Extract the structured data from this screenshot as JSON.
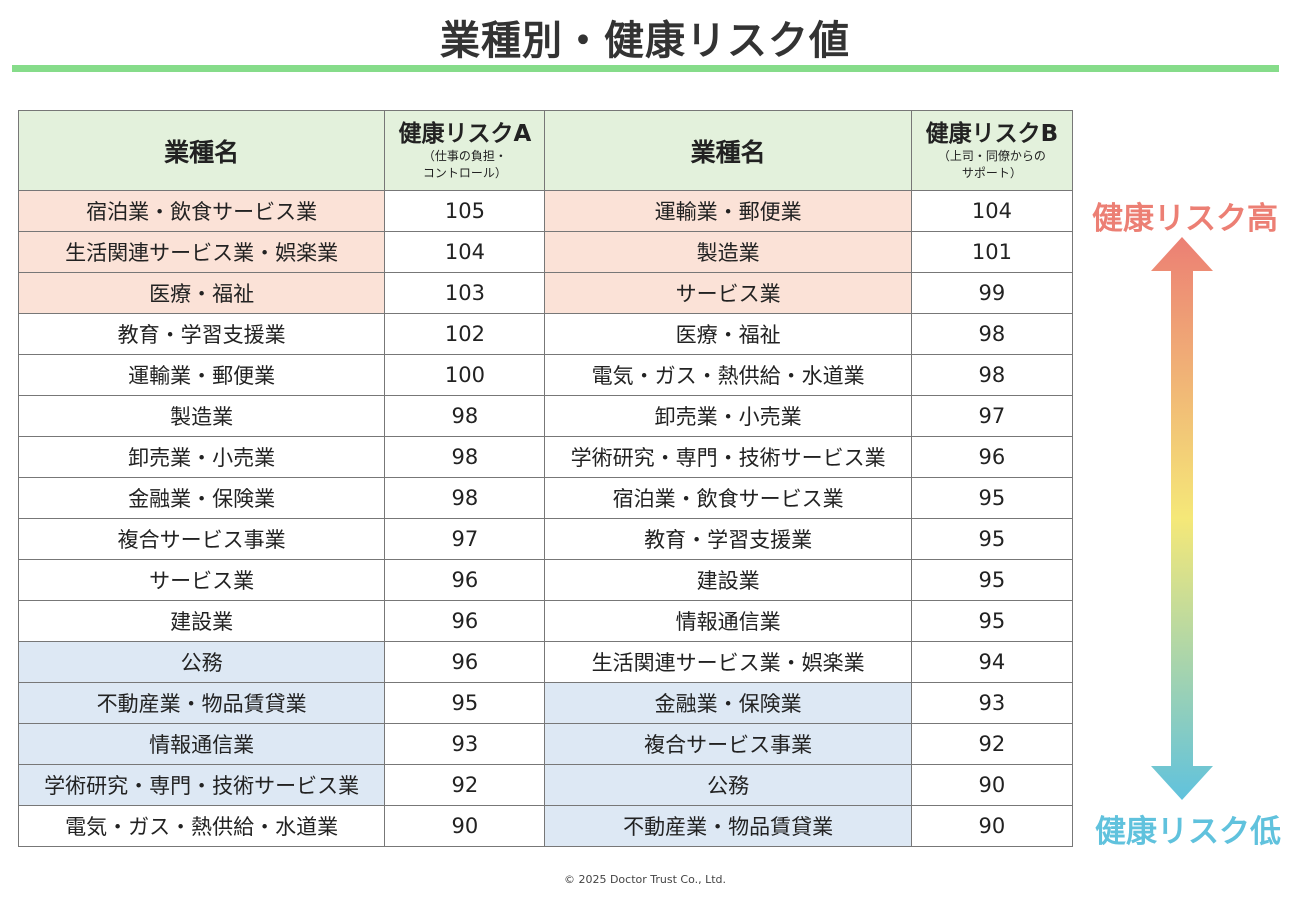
{
  "title": "業種別・健康リスク値",
  "table": {
    "header": {
      "name_a": "業種名",
      "risk_a_main": "健康リスクA",
      "risk_a_sub1": "（仕事の負担・",
      "risk_a_sub2": "コントロール）",
      "name_b": "業種名",
      "risk_b_main": "健康リスクB",
      "risk_b_sub1": "（上司・同僚からの",
      "risk_b_sub2": "サポート）"
    },
    "rows": [
      {
        "a_name": "宿泊業・飲食サービス業",
        "a_val": "105",
        "a_level": "high",
        "b_name": "運輸業・郵便業",
        "b_val": "104",
        "b_level": "high"
      },
      {
        "a_name": "生活関連サービス業・娯楽業",
        "a_val": "104",
        "a_level": "high",
        "b_name": "製造業",
        "b_val": "101",
        "b_level": "high"
      },
      {
        "a_name": "医療・福祉",
        "a_val": "103",
        "a_level": "high",
        "b_name": "サービス業",
        "b_val": "99",
        "b_level": "high"
      },
      {
        "a_name": "教育・学習支援業",
        "a_val": "102",
        "a_level": "",
        "b_name": "医療・福祉",
        "b_val": "98",
        "b_level": ""
      },
      {
        "a_name": "運輸業・郵便業",
        "a_val": "100",
        "a_level": "",
        "b_name": "電気・ガス・熱供給・水道業",
        "b_val": "98",
        "b_level": ""
      },
      {
        "a_name": "製造業",
        "a_val": "98",
        "a_level": "",
        "b_name": "卸売業・小売業",
        "b_val": "97",
        "b_level": ""
      },
      {
        "a_name": "卸売業・小売業",
        "a_val": "98",
        "a_level": "",
        "b_name": "学術研究・専門・技術サービス業",
        "b_val": "96",
        "b_level": ""
      },
      {
        "a_name": "金融業・保険業",
        "a_val": "98",
        "a_level": "",
        "b_name": "宿泊業・飲食サービス業",
        "b_val": "95",
        "b_level": ""
      },
      {
        "a_name": "複合サービス事業",
        "a_val": "97",
        "a_level": "",
        "b_name": "教育・学習支援業",
        "b_val": "95",
        "b_level": ""
      },
      {
        "a_name": "サービス業",
        "a_val": "96",
        "a_level": "",
        "b_name": "建設業",
        "b_val": "95",
        "b_level": ""
      },
      {
        "a_name": "建設業",
        "a_val": "96",
        "a_level": "",
        "b_name": "情報通信業",
        "b_val": "95",
        "b_level": ""
      },
      {
        "a_name": "公務",
        "a_val": "96",
        "a_level": "low",
        "b_name": "生活関連サービス業・娯楽業",
        "b_val": "94",
        "b_level": ""
      },
      {
        "a_name": "不動産業・物品賃貸業",
        "a_val": "95",
        "a_level": "low",
        "b_name": "金融業・保険業",
        "b_val": "93",
        "b_level": "low"
      },
      {
        "a_name": "情報通信業",
        "a_val": "93",
        "a_level": "low",
        "b_name": "複合サービス事業",
        "b_val": "92",
        "b_level": "low"
      },
      {
        "a_name": "学術研究・専門・技術サービス業",
        "a_val": "92",
        "a_level": "low",
        "b_name": "公務",
        "b_val": "90",
        "b_level": "low"
      },
      {
        "a_name": "電気・ガス・熱供給・水道業",
        "a_val": "90",
        "a_level": "",
        "b_name": "不動産業・物品賃貸業",
        "b_val": "90",
        "b_level": "low"
      }
    ]
  },
  "legend": {
    "high_label": "健康リスク高",
    "low_label": "健康リスク低",
    "high_color": "#ec7f74",
    "mid_color": "#f5e878",
    "low_color": "#60c2dd",
    "arrow_icon": "double-headed-gradient-arrow"
  },
  "colors": {
    "header_bg": "#e3f1dc",
    "high_bg": "#fbe2d7",
    "low_bg": "#dde8f4",
    "title_rule": "#86dc8a"
  },
  "footer": {
    "copyright": "©  2025 Doctor Trust Co., Ltd."
  }
}
